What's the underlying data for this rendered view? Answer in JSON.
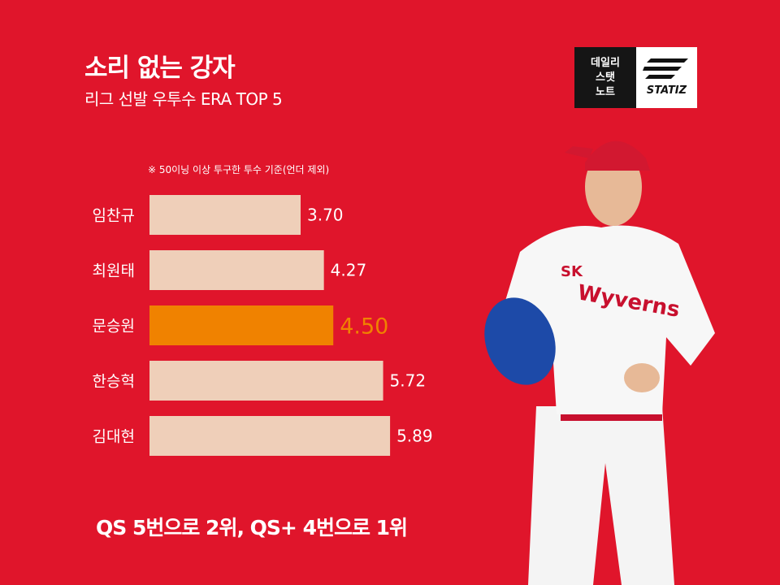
{
  "header": {
    "title": "소리 없는 강자",
    "subtitle": "리그 선발 우투수 ERA TOP 5"
  },
  "logo": {
    "line1": "데일리",
    "line2": "스탯",
    "line3": "노트",
    "brand": "STATIZ"
  },
  "note": "※ 50이닝 이상 투구한 투수 기준(언더 제외)",
  "footer": "QS 5번으로 2위, QS+ 4번으로 1위",
  "colors": {
    "background": "#e0152b",
    "bar": "#efcfb9",
    "highlight_bar": "#f08200",
    "highlight_text": "#f08200"
  },
  "chart_data": {
    "type": "bar",
    "orientation": "horizontal",
    "categories": [
      "임찬규",
      "최원태",
      "문승원",
      "한승혁",
      "김대현"
    ],
    "values": [
      3.7,
      4.27,
      4.5,
      5.72,
      5.89
    ],
    "value_labels": [
      "3.70",
      "4.27",
      "4.50",
      "5.72",
      "5.89"
    ],
    "highlight_index": 2,
    "title": "리그 선발 우투수 ERA TOP 5",
    "xlabel": "",
    "ylabel": ""
  }
}
